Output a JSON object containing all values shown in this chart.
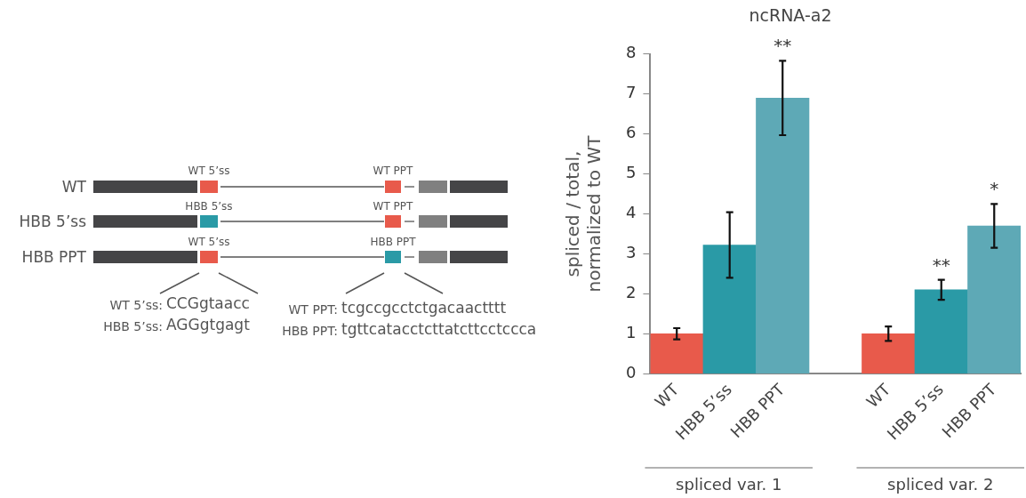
{
  "chart_data": [
    {
      "type": "other",
      "annotations": [
        "WT",
        "HBB 5’ss",
        "HBB PPT",
        "WT 5’ss",
        "WT PPT",
        "HBB 5’ss",
        "WT PPT",
        "WT 5’ss",
        "HBB PPT",
        "WT 5’ss:",
        "CCGgtaacc",
        "HBB 5’ss:",
        "AGGgtgagt",
        "WT PPT:",
        "tcgccgcctctgacaactttt",
        "HBB PPT:",
        "tgttcatacctcttatcttcctccca"
      ]
    },
    {
      "type": "bar",
      "title": "ncRNA-a2",
      "ylabel": "spliced / total,\nnormalized to WT",
      "categories": [
        "WT",
        "HBB 5’ss",
        "HBB PPT",
        null,
        "WT",
        "HBB 5’ss",
        "HBB PPT"
      ],
      "values": [
        1,
        3.22,
        6.9,
        null,
        1,
        2.1,
        3.7
      ],
      "colors": [
        "#e85a4b",
        "#2a9aa6",
        "#5ea9b6",
        "#ffffff",
        "#e85a4b",
        "#2a9aa6",
        "#5ea9b6"
      ],
      "errors": [
        0.14,
        0.82,
        0.93,
        null,
        0.18,
        0.25,
        0.55
      ],
      "value_labels": [
        null,
        null,
        "**",
        null,
        null,
        "**",
        "*"
      ],
      "ylim": [
        0,
        8
      ],
      "yticks": [
        0,
        1,
        2,
        3,
        4,
        5,
        6,
        7,
        8
      ],
      "grid": false,
      "annotations": [
        "spliced var. 1",
        "spliced var. 2"
      ]
    }
  ]
}
